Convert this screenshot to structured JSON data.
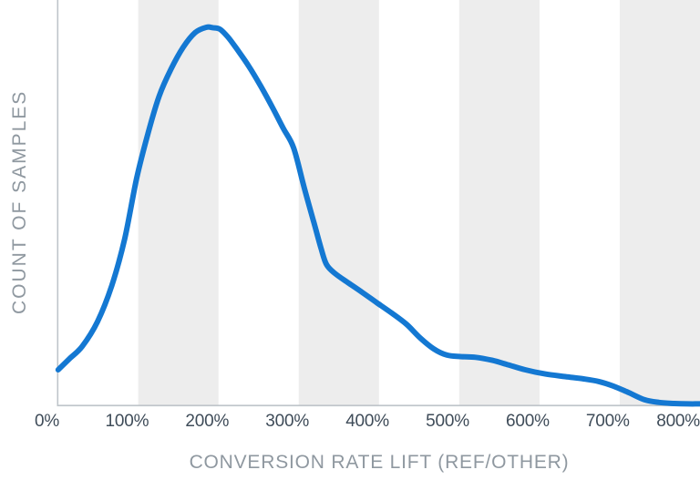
{
  "colors": {
    "background": "#ffffff",
    "curve_blue": "#1478d2",
    "band_gray": "#ededed",
    "axis_line_gray": "#bfc5ca",
    "tick_label": "#3f4c59",
    "axis_title": "#8f98a0"
  },
  "chart_data": {
    "type": "line",
    "title": "",
    "xlabel": "CONVERSION RATE LIFT (REF/OTHER)",
    "ylabel": "COUNT OF SAMPLES",
    "x_tick_labels": [
      "0%",
      "100%",
      "200%",
      "300%",
      "400%",
      "500%",
      "600%",
      "700%",
      "800%"
    ],
    "x_axis_range_pct": [
      0,
      815
    ],
    "y_axis_note": "no numeric ticks shown; values are relative density, peak = 1.0",
    "legend": "none",
    "grid": "off",
    "style": {
      "band_count": 8,
      "bands_note": "plot background split into 8 equal vertical columns alternating white / light gray, starting white at the y-axis",
      "curve_stroke_px": 6
    },
    "series": [
      {
        "name": "count-of-samples-density",
        "x_pct": [
          14,
          28,
          44,
          63,
          81,
          97,
          112,
          126,
          140,
          155,
          170,
          185,
          199,
          207,
          216,
          226,
          238,
          252,
          267,
          282,
          295,
          308,
          321,
          333,
          342,
          349,
          360,
          376,
          394,
          412,
          431,
          449,
          466,
          483,
          499,
          516,
          535,
          556,
          576,
          597,
          622,
          647,
          670,
          689,
          707,
          726,
          746,
          764,
          783,
          800,
          815
        ],
        "y_rel": [
          0.095,
          0.124,
          0.157,
          0.222,
          0.318,
          0.441,
          0.601,
          0.719,
          0.818,
          0.89,
          0.947,
          0.986,
          1.0,
          0.999,
          0.995,
          0.974,
          0.94,
          0.897,
          0.844,
          0.786,
          0.733,
          0.681,
          0.577,
          0.486,
          0.417,
          0.373,
          0.349,
          0.325,
          0.299,
          0.272,
          0.244,
          0.215,
          0.179,
          0.15,
          0.134,
          0.13,
          0.128,
          0.12,
          0.108,
          0.095,
          0.084,
          0.077,
          0.071,
          0.064,
          0.052,
          0.035,
          0.016,
          0.009,
          0.006,
          0.005,
          0.005
        ]
      }
    ]
  }
}
